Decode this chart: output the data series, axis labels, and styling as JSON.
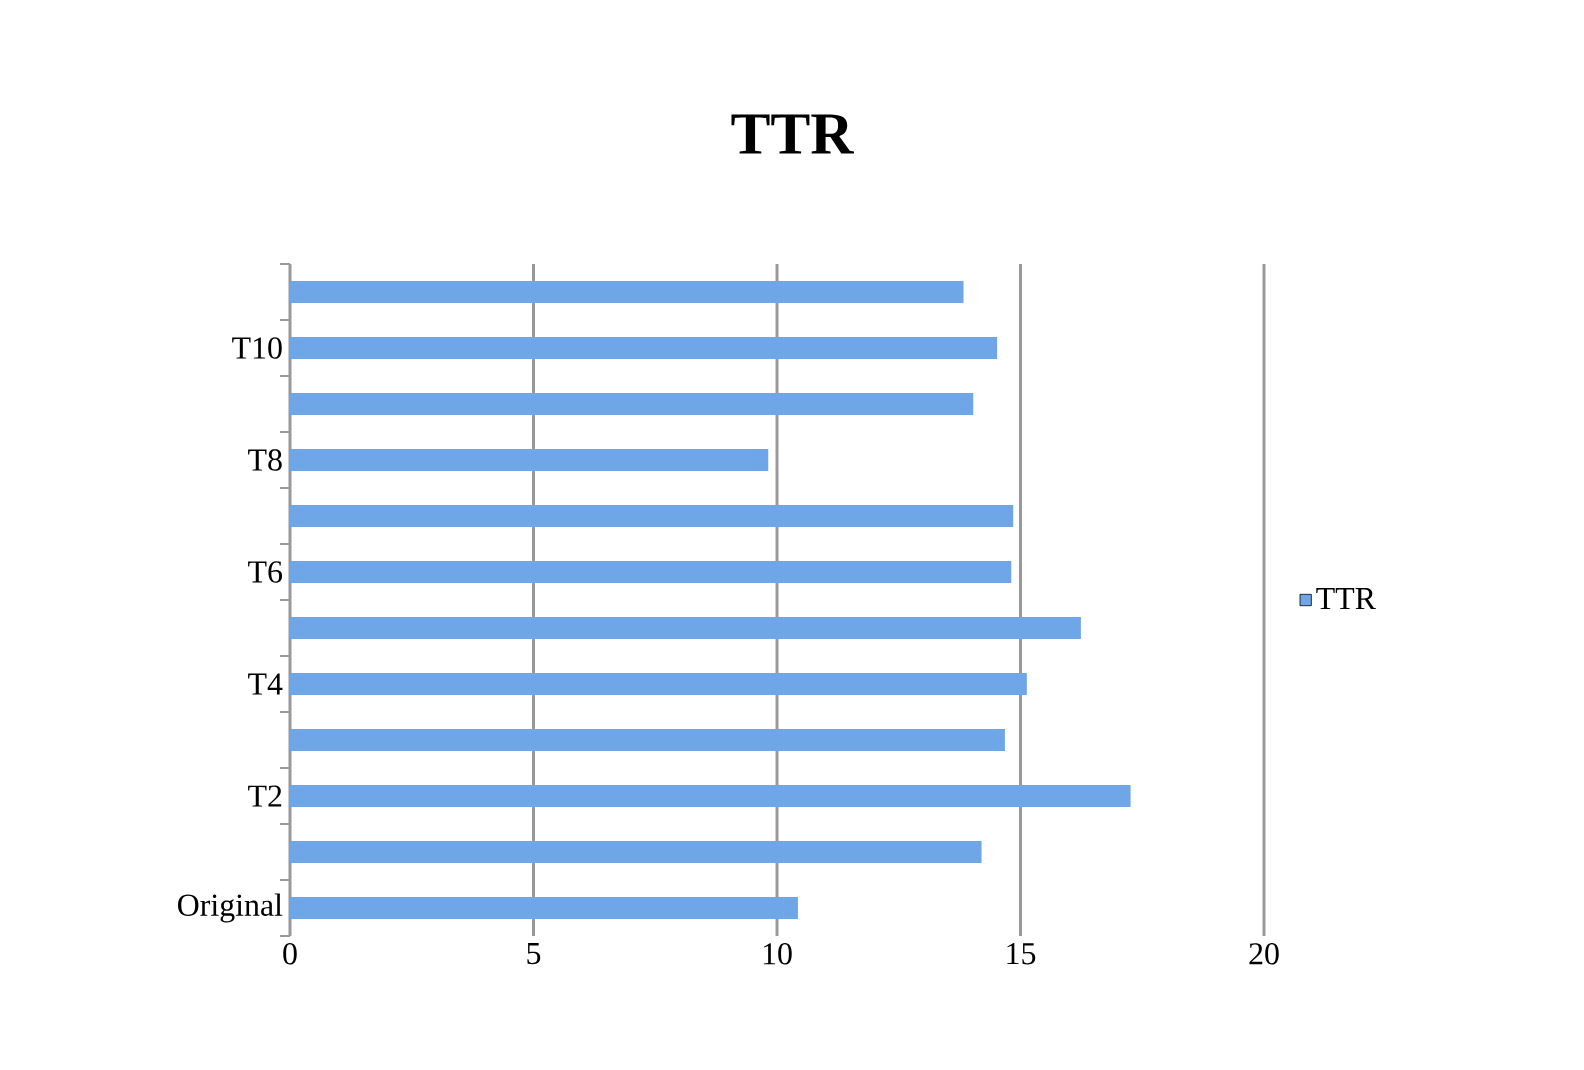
{
  "chart_data": {
    "type": "bar",
    "orientation": "horizontal",
    "title": "TTR",
    "categories": [
      null,
      "T10",
      null,
      "T8",
      null,
      "T6",
      null,
      "T4",
      null,
      "T2",
      null,
      "Original"
    ],
    "series": [
      {
        "name": "TTR",
        "color": "#6fa6e8",
        "values": [
          13.83,
          14.52,
          14.03,
          9.82,
          14.85,
          14.81,
          16.24,
          15.13,
          14.68,
          17.26,
          14.2,
          10.43
        ]
      }
    ],
    "xlim": [
      0,
      20
    ],
    "xticks": [
      0,
      5,
      10,
      15,
      20
    ],
    "grid": "x",
    "legend": "right"
  }
}
